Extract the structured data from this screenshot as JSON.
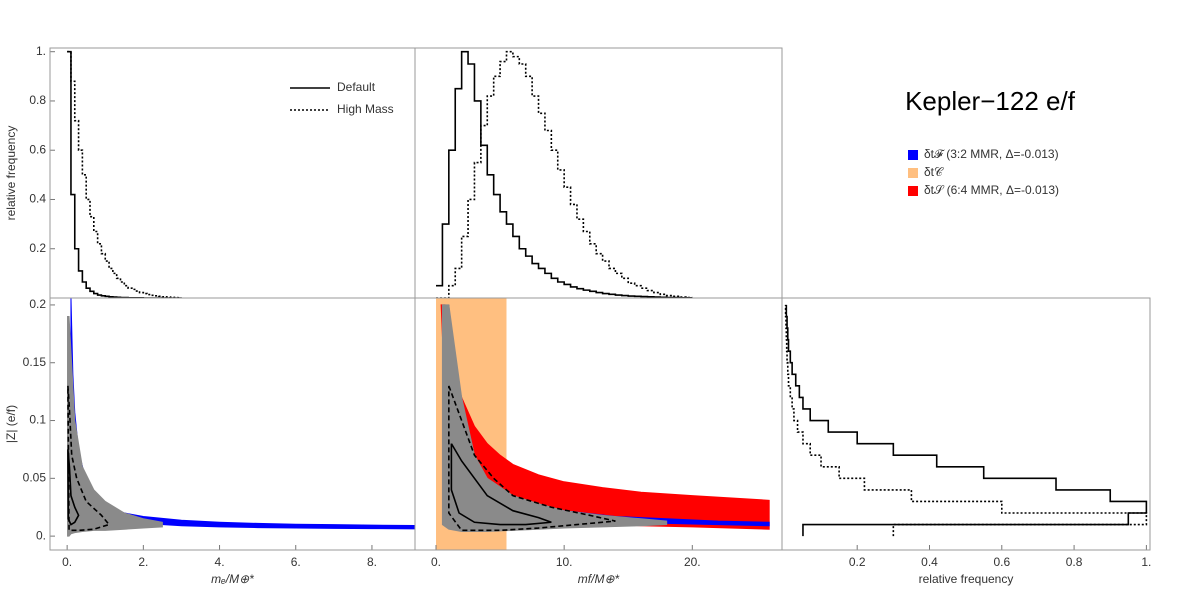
{
  "title": "Kepler−122 e/f",
  "chart_data": [
    {
      "type": "histogram",
      "y_label": "relative frequency",
      "xlim": [
        -0.45,
        9.13
      ],
      "ylim": [
        0,
        1.015
      ],
      "yticks": [
        0.2,
        0.4,
        0.6,
        0.8,
        {
          "value": 1,
          "label": "1."
        }
      ],
      "bins": [
        0,
        0.1,
        0.2,
        0.3,
        0.4,
        0.5,
        0.6,
        0.7,
        0.8,
        0.9,
        1.0,
        1.1,
        1.2,
        1.3,
        1.4,
        1.5,
        1.6,
        1.7,
        1.8,
        1.9,
        2.0,
        2.1,
        2.2,
        2.3,
        2.4,
        2.5,
        2.6,
        2.7,
        2.8,
        2.9,
        3.0
      ],
      "series": [
        {
          "name": "Default",
          "color": "#000000",
          "style": "solid",
          "values": [
            1,
            0.42,
            0.2,
            0.11,
            0.065,
            0.04,
            0.027,
            0.018,
            0.012,
            0.009,
            0.007,
            0.005,
            0.004,
            0.003,
            0.002,
            0.002,
            0.001,
            0.001,
            0.001,
            0.001,
            0,
            0,
            0,
            0,
            0,
            0,
            0,
            0,
            0,
            0
          ]
        },
        {
          "name": "High Mass",
          "color": "#000000",
          "style": "dotted",
          "values": [
            1,
            0.88,
            0.72,
            0.6,
            0.5,
            0.4,
            0.33,
            0.27,
            0.22,
            0.18,
            0.15,
            0.12,
            0.1,
            0.08,
            0.065,
            0.05,
            0.04,
            0.035,
            0.028,
            0.022,
            0.018,
            0.014,
            0.011,
            0.009,
            0.007,
            0.005,
            0.004,
            0.003,
            0.002,
            0.001
          ]
        }
      ]
    },
    {
      "type": "histogram",
      "xlim": [
        -1.64,
        27.0
      ],
      "ylim": [
        0,
        1.015
      ],
      "bins": [
        0,
        0.5,
        1,
        1.5,
        2,
        2.5,
        3,
        3.5,
        4,
        4.5,
        5,
        5.5,
        6,
        6.5,
        7,
        7.5,
        8,
        8.5,
        9,
        9.5,
        10,
        10.5,
        11,
        11.5,
        12,
        12.5,
        13,
        13.5,
        14,
        14.5,
        15,
        15.5,
        16,
        16.5,
        17,
        17.5,
        18,
        18.5,
        19,
        19.5,
        20
      ],
      "series": [
        {
          "color": "#000000",
          "style": "solid",
          "values": [
            0.05,
            0.3,
            0.6,
            0.85,
            1,
            0.95,
            0.8,
            0.62,
            0.5,
            0.42,
            0.35,
            0.3,
            0.25,
            0.2,
            0.17,
            0.14,
            0.12,
            0.1,
            0.08,
            0.065,
            0.055,
            0.045,
            0.038,
            0.032,
            0.027,
            0.022,
            0.018,
            0.015,
            0.012,
            0.01,
            0.008,
            0.007,
            0.006,
            0.005,
            0.004,
            0.003,
            0.002,
            0.002,
            0.001,
            0.001
          ]
        },
        {
          "color": "#000000",
          "style": "dotted",
          "values": [
            0,
            0,
            0.05,
            0.12,
            0.25,
            0.4,
            0.55,
            0.7,
            0.82,
            0.9,
            0.96,
            1,
            0.98,
            0.95,
            0.9,
            0.82,
            0.75,
            0.68,
            0.6,
            0.52,
            0.45,
            0.38,
            0.32,
            0.27,
            0.22,
            0.18,
            0.15,
            0.12,
            0.1,
            0.08,
            0.06,
            0.05,
            0.04,
            0.03,
            0.022,
            0.015,
            0.01,
            0.007,
            0.004,
            0.002
          ]
        }
      ]
    },
    {
      "type": "band",
      "x_label": "mₑ/M⊕*",
      "y_label": "|Z| (e/f)",
      "xlim": [
        -0.45,
        9.13
      ],
      "ylim": [
        -0.012,
        0.206
      ],
      "xticks": [
        {
          "value": 0,
          "label": "0."
        },
        {
          "value": 2,
          "label": "2."
        },
        {
          "value": 4,
          "label": "4."
        },
        {
          "value": 6,
          "label": "6."
        },
        {
          "value": 8,
          "label": "8."
        }
      ],
      "yticks": [
        {
          "value": 0,
          "label": "0."
        },
        0.05,
        0.1,
        0.15,
        0.2
      ],
      "series": [
        {
          "color": "#0000ff",
          "x": [
            0.1,
            0.15,
            0.2,
            0.3,
            0.5,
            0.75,
            1,
            1.5,
            2,
            3,
            4,
            5,
            6,
            7,
            8,
            9.2
          ],
          "upper": [
            0.207,
            0.14,
            0.107,
            0.074,
            0.047,
            0.034,
            0.027,
            0.02,
            0.017,
            0.0137,
            0.012,
            0.011,
            0.0103,
            0.0099,
            0.0095,
            0.0092
          ],
          "lower": [
            0.125,
            0.085,
            0.065,
            0.045,
            0.029,
            0.021,
            0.017,
            0.013,
            0.011,
            0.009,
            0.008,
            0.0074,
            0.007,
            0.0067,
            0.0065,
            0.0063
          ]
        },
        {
          "color": "#8a8a8a",
          "x": [
            0.01,
            0.05,
            0.1,
            0.2,
            0.4,
            0.7,
            1,
            1.5,
            2,
            2.5
          ],
          "upper": [
            0.19,
            0.19,
            0.16,
            0.1,
            0.06,
            0.04,
            0.03,
            0.02,
            0.015,
            0.012
          ],
          "lower": [
            0,
            0,
            0.002,
            0.003,
            0.004,
            0.005,
            0.005,
            0.006,
            0.007,
            0.008
          ]
        },
        {
          "color": "#000000",
          "style": "solid",
          "x": [
            0.02,
            0.06,
            0.1,
            0.2,
            0.3,
            0.2,
            0.1,
            0.03,
            0.02
          ],
          "y": [
            0.075,
            0.06,
            0.035,
            0.025,
            0.018,
            0.012,
            0.01,
            0.015,
            0.075
          ]
        },
        {
          "color": "#000000",
          "style": "dashed",
          "x": [
            0.02,
            0.06,
            0.12,
            0.25,
            0.5,
            0.9,
            1.1,
            0.7,
            0.3,
            0.05,
            0.02
          ],
          "y": [
            0.13,
            0.11,
            0.07,
            0.05,
            0.03,
            0.018,
            0.01,
            0.006,
            0.005,
            0.005,
            0.13
          ]
        }
      ]
    },
    {
      "type": "band",
      "x_label": "mf/M⊕*",
      "xlim": [
        -1.64,
        27.0
      ],
      "ylim": [
        -0.012,
        0.206
      ],
      "xticks": [
        {
          "value": 0,
          "label": "0."
        },
        {
          "value": 10,
          "label": "10."
        },
        {
          "value": 20,
          "label": "20."
        }
      ],
      "series": [
        {
          "name": "δt𝓕 (3:2 MMR, Δ=-0.013)",
          "color": "#0000ff",
          "x": [
            1,
            1.3,
            1.7,
            2.2,
            3,
            4,
            5,
            7,
            10,
            14,
            18,
            22,
            26
          ],
          "upper": [
            0.2,
            0.15,
            0.11,
            0.085,
            0.06,
            0.045,
            0.037,
            0.028,
            0.022,
            0.017,
            0.015,
            0.013,
            0.012
          ],
          "lower": [
            0.15,
            0.11,
            0.08,
            0.062,
            0.045,
            0.033,
            0.027,
            0.02,
            0.016,
            0.013,
            0.011,
            0.01,
            0.009
          ]
        },
        {
          "name": "δt𝒞",
          "color": "#ffbf80",
          "xrange": [
            0,
            5.5
          ]
        },
        {
          "name": "δt𝒮 (6:4 MMR, Δ=-0.013)",
          "color": "#ff0000",
          "x": [
            0.4,
            0.7,
            1,
            1.5,
            2,
            3,
            4,
            5,
            6,
            8,
            10,
            13,
            16,
            20,
            26
          ],
          "upper": [
            0.2,
            0.2,
            0.17,
            0.14,
            0.12,
            0.095,
            0.08,
            0.07,
            0.062,
            0.053,
            0.047,
            0.042,
            0.038,
            0.035,
            0.031
          ],
          "lower": [
            0.2,
            0.12,
            0.08,
            0.055,
            0.042,
            0.03,
            0.024,
            0.02,
            0.017,
            0.014,
            0.012,
            0.01,
            0.009,
            0.008,
            0.006
          ]
        },
        {
          "color": "#8a8a8a",
          "x": [
            0.5,
            1,
            2,
            3,
            4,
            6,
            8,
            10,
            13,
            16,
            18
          ],
          "upper": [
            0.2,
            0.2,
            0.12,
            0.07,
            0.05,
            0.035,
            0.028,
            0.022,
            0.018,
            0.015,
            0.013
          ],
          "lower": [
            0.01,
            0.006,
            0.004,
            0.004,
            0.004,
            0.005,
            0.006,
            0.007,
            0.008,
            0.009,
            0.01
          ]
        },
        {
          "color": "#000000",
          "style": "solid",
          "x": [
            1.2,
            2,
            3,
            4,
            6,
            8,
            9,
            7,
            5,
            3,
            1.8,
            1.2,
            1.2
          ],
          "y": [
            0.08,
            0.065,
            0.05,
            0.035,
            0.022,
            0.016,
            0.012,
            0.01,
            0.01,
            0.012,
            0.02,
            0.04,
            0.08
          ]
        },
        {
          "color": "#000000",
          "style": "dashed",
          "x": [
            1,
            2,
            3,
            4.5,
            6,
            9,
            12,
            14,
            11,
            8,
            5,
            2,
            1,
            1
          ],
          "y": [
            0.13,
            0.1,
            0.07,
            0.05,
            0.035,
            0.025,
            0.018,
            0.013,
            0.01,
            0.007,
            0.005,
            0.005,
            0.02,
            0.13
          ]
        }
      ]
    },
    {
      "type": "histogram",
      "orientation": "horizontal",
      "x_label": "relative frequency",
      "xlim": [
        -0.008,
        1.01
      ],
      "ylim": [
        -0.012,
        0.206
      ],
      "xticks": [
        0.2,
        0.4,
        0.6,
        0.8,
        {
          "value": 1,
          "label": "1."
        }
      ],
      "bins": [
        0,
        0.01,
        0.02,
        0.03,
        0.04,
        0.05,
        0.06,
        0.07,
        0.08,
        0.09,
        0.1,
        0.11,
        0.12,
        0.13,
        0.14,
        0.15,
        0.16,
        0.17,
        0.18,
        0.19,
        0.2
      ],
      "series": [
        {
          "color": "#000000",
          "style": "solid",
          "values": [
            0.05,
            0.95,
            1,
            0.9,
            0.75,
            0.55,
            0.42,
            0.3,
            0.2,
            0.12,
            0.07,
            0.05,
            0.04,
            0.03,
            0.02,
            0.015,
            0.01,
            0.008,
            0.006,
            0.004
          ]
        },
        {
          "color": "#000000",
          "style": "dotted",
          "values": [
            0.3,
            1,
            0.6,
            0.35,
            0.22,
            0.15,
            0.1,
            0.07,
            0.05,
            0.035,
            0.025,
            0.02,
            0.015,
            0.01,
            0.008,
            0.006,
            0.005,
            0.004,
            0.003,
            0.002
          ]
        }
      ]
    }
  ]
}
